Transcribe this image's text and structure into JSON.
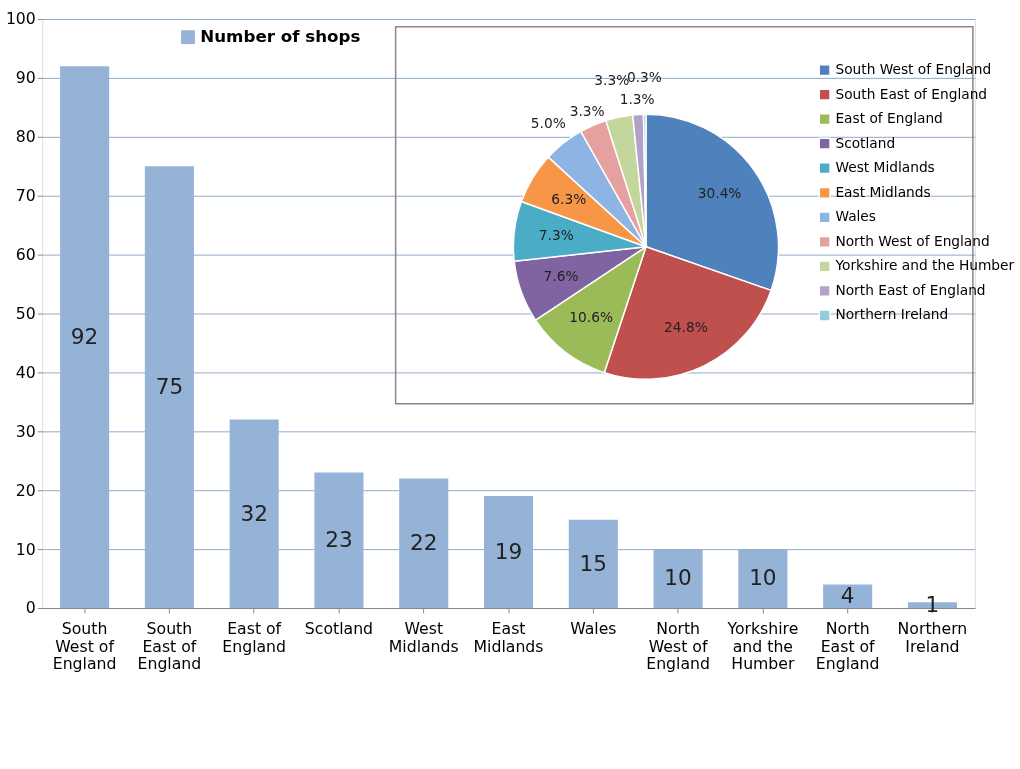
{
  "chart_data": [
    {
      "type": "bar",
      "categories": [
        "South West of England",
        "South East of England",
        "East of England",
        "Scotland",
        "West Midlands",
        "East Midlands",
        "Wales",
        "North West of England",
        "Yorkshire and the Humber",
        "North East of England",
        "Northern Ireland"
      ],
      "series": [
        {
          "name": "Number of shops",
          "color": "#95b3d7",
          "values": [
            92,
            75,
            32,
            23,
            22,
            19,
            15,
            10,
            10,
            4,
            1
          ]
        }
      ],
      "ylim": [
        0,
        100
      ],
      "yticks": [
        0,
        10,
        20,
        30,
        40,
        50,
        60,
        70,
        80,
        90,
        100
      ],
      "grid": "y",
      "data_labels": true,
      "legend": "top left"
    },
    {
      "type": "pie",
      "categories": [
        "South West of England",
        "South East of England",
        "East of England",
        "Scotland",
        "West Midlands",
        "East Midlands",
        "Wales",
        "North West of England",
        "Yorkshire and the Humber",
        "North East of England",
        "Northern Ireland"
      ],
      "values": [
        30.4,
        24.8,
        10.6,
        7.6,
        7.3,
        6.3,
        5.0,
        3.3,
        3.3,
        1.3,
        0.3
      ],
      "value_labels": [
        "30.4%",
        "24.8%",
        "10.6%",
        "7.6%",
        "7.3%",
        "6.3%",
        "5.0%",
        "3.3%",
        "3.3%",
        "1.3%",
        "0.3%"
      ],
      "colors": [
        "#4f81bd",
        "#c0504d",
        "#9bbb59",
        "#8064a2",
        "#4bacc6",
        "#f79646",
        "#8eb4e3",
        "#e6a0a0",
        "#c3d69b",
        "#b3a2c7",
        "#93cddd"
      ],
      "legend": "right"
    }
  ]
}
